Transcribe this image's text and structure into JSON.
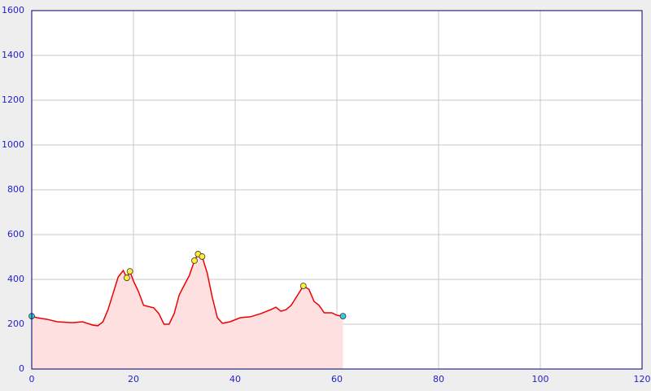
{
  "chart_data": {
    "type": "area",
    "xlim": [
      0,
      120
    ],
    "xticks": [
      0,
      20,
      40,
      60,
      80,
      100,
      120
    ],
    "ylim": [
      0,
      1600
    ],
    "yticks": [
      0,
      200,
      400,
      600,
      800,
      1000,
      1200,
      1400,
      1600
    ],
    "grid": true,
    "fill": "#ffe0e0",
    "x": [
      0,
      1,
      3,
      5,
      8,
      10,
      12,
      13,
      14,
      15,
      16,
      17,
      18,
      18.7,
      19.3,
      20,
      21,
      22,
      24,
      25,
      26,
      27,
      28,
      29,
      30,
      31,
      32,
      32.7,
      33.5,
      34.5,
      35.5,
      36.5,
      37.5,
      39,
      41,
      43,
      45,
      47,
      48,
      49,
      50,
      51,
      52,
      53.4,
      54.5,
      55.5,
      56.5,
      57.5,
      59,
      60,
      61.2
    ],
    "series": [
      {
        "color": "#ee0000",
        "values": [
          236,
          229,
          222,
          211,
          207,
          211,
          196,
          193,
          211,
          265,
          338,
          411,
          440,
          407,
          436,
          393,
          345,
          284,
          273,
          247,
          200,
          200,
          247,
          331,
          375,
          418,
          484,
          513,
          502,
          429,
          320,
          229,
          204,
          211,
          229,
          233,
          247,
          265,
          276,
          258,
          265,
          284,
          320,
          371,
          356,
          302,
          284,
          251,
          251,
          240,
          236
        ]
      }
    ],
    "markers": [
      {
        "color": "#33ccdd",
        "x": [
          0,
          61.2
        ],
        "values": [
          236,
          236
        ]
      },
      {
        "color": "#ffee33",
        "x": [
          18.7,
          19.3,
          32,
          32.7,
          33.5,
          53.4
        ],
        "values": [
          407,
          436,
          484,
          513,
          502,
          371
        ]
      }
    ]
  }
}
